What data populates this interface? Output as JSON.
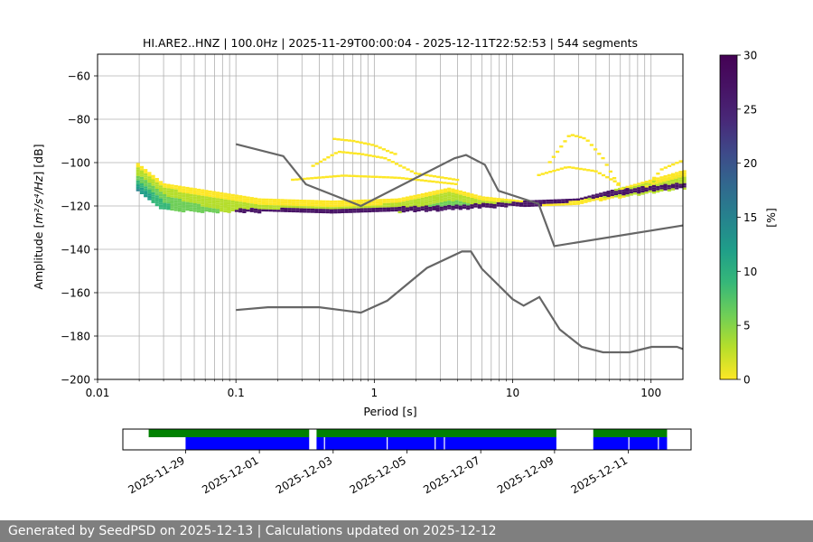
{
  "chart_data": [
    {
      "type": "heatmap",
      "title": "HI.ARE2..HNZ | 100.0Hz | 2025-11-29T00:00:04 - 2025-12-11T22:52:53 | 544 segments",
      "xlabel": "Period [s]",
      "ylabel_prefix": "Amplitude [",
      "ylabel_math": "m²/s⁴/Hz",
      "ylabel_suffix": "] [dB]",
      "xscale": "log",
      "xlim": [
        0.01,
        170
      ],
      "ylim": [
        -200,
        -50
      ],
      "x_ticks": [
        0.01,
        0.1,
        1,
        10,
        100
      ],
      "x_tick_labels": [
        "0.01",
        "0.1",
        "1",
        "10",
        "100"
      ],
      "y_ticks": [
        -200,
        -180,
        -160,
        -140,
        -120,
        -100,
        -80,
        -60
      ],
      "y_tick_labels": [
        "−200",
        "−180",
        "−160",
        "−140",
        "−120",
        "−100",
        "−80",
        "−60"
      ],
      "grid": true,
      "colorbar": {
        "label": "[%]",
        "range": [
          0,
          30
        ],
        "ticks": [
          0,
          5,
          10,
          15,
          20,
          25,
          30
        ],
        "tick_labels": [
          "0",
          "5",
          "10",
          "15",
          "20",
          "25",
          "30"
        ],
        "colormap": "viridis_r"
      },
      "mode_curve": [
        [
          0.019,
          -113
        ],
        [
          0.03,
          -120
        ],
        [
          0.05,
          -122
        ],
        [
          0.1,
          -122.5
        ],
        [
          0.3,
          -122.5
        ],
        [
          0.8,
          -122
        ],
        [
          2,
          -121.5
        ],
        [
          5,
          -120.5
        ],
        [
          10,
          -119.5
        ],
        [
          20,
          -118
        ],
        [
          40,
          -115
        ],
        [
          100,
          -112
        ],
        [
          170,
          -110.5
        ]
      ],
      "percentile_band": [
        [
          0.019,
          -100,
          -113,
          14
        ],
        [
          0.03,
          -110,
          -122,
          8
        ],
        [
          0.06,
          -113,
          -123,
          5
        ],
        [
          0.15,
          -117,
          -123,
          3
        ],
        [
          0.5,
          -118,
          -123,
          2
        ],
        [
          1.5,
          -117,
          -123,
          3
        ],
        [
          3.5,
          -112,
          -122,
          7
        ],
        [
          6,
          -116,
          -121,
          4
        ],
        [
          12,
          -118,
          -120,
          2
        ],
        [
          30,
          -117,
          -119,
          2
        ],
        [
          80,
          -110,
          -115,
          3
        ],
        [
          170,
          -104,
          -112,
          4
        ]
      ],
      "outlier_curves": [
        [
          [
            0.35,
            -102
          ],
          [
            0.55,
            -95
          ],
          [
            0.8,
            -96
          ],
          [
            1.2,
            -98
          ],
          [
            2,
            -105
          ],
          [
            4,
            -108
          ]
        ],
        [
          [
            0.25,
            -108
          ],
          [
            0.6,
            -106
          ],
          [
            1.5,
            -107
          ],
          [
            4,
            -110
          ]
        ],
        [
          [
            0.5,
            -89
          ],
          [
            0.7,
            -90
          ],
          [
            1,
            -92
          ],
          [
            1.4,
            -96
          ]
        ],
        [
          [
            18,
            -101
          ],
          [
            26,
            -87
          ],
          [
            34,
            -89
          ],
          [
            45,
            -98
          ],
          [
            60,
            -112
          ]
        ],
        [
          [
            15,
            -106
          ],
          [
            25,
            -102
          ],
          [
            40,
            -104
          ],
          [
            60,
            -110
          ]
        ],
        [
          [
            90,
            -112
          ],
          [
            120,
            -103
          ],
          [
            170,
            -99
          ]
        ],
        [
          [
            100,
            -110
          ],
          [
            170,
            -106
          ]
        ]
      ],
      "noise_model_high": [
        [
          0.1,
          -91.5
        ],
        [
          0.22,
          -97
        ],
        [
          0.32,
          -110
        ],
        [
          0.8,
          -120
        ],
        [
          3.8,
          -98
        ],
        [
          4.6,
          -96.5
        ],
        [
          6.3,
          -101
        ],
        [
          7.9,
          -113
        ],
        [
          15.4,
          -119
        ],
        [
          20,
          -138.5
        ],
        [
          170,
          -129
        ]
      ],
      "noise_model_low": [
        [
          0.1,
          -168
        ],
        [
          0.17,
          -166.7
        ],
        [
          0.4,
          -166.7
        ],
        [
          0.8,
          -169.2
        ],
        [
          1.24,
          -163.7
        ],
        [
          2.4,
          -148.6
        ],
        [
          4.3,
          -141
        ],
        [
          5,
          -141
        ],
        [
          6,
          -149
        ],
        [
          10,
          -163
        ],
        [
          12,
          -166
        ],
        [
          15.6,
          -162
        ],
        [
          21.9,
          -177
        ],
        [
          31.6,
          -185
        ],
        [
          45,
          -187.5
        ],
        [
          70,
          -187.5
        ],
        [
          101,
          -185
        ],
        [
          154,
          -185
        ],
        [
          170,
          -186
        ]
      ]
    },
    {
      "type": "timeline",
      "x_tick_labels": [
        "2025-11-29",
        "2025-12-01",
        "2025-12-03",
        "2025-12-05",
        "2025-12-07",
        "2025-12-09",
        "2025-12-11"
      ],
      "x_ticks_day": [
        1,
        3,
        5,
        7,
        9,
        11,
        13
      ],
      "xlim_day": [
        -0.7,
        14.7
      ],
      "green_spans_day": [
        [
          0,
          4.35
        ],
        [
          4.55,
          11.05
        ],
        [
          12.05,
          14.05
        ]
      ],
      "blue_spans_day": [
        [
          1.0,
          4.35
        ],
        [
          4.55,
          11.05
        ],
        [
          12.05,
          14.05
        ]
      ],
      "blue_gaps_day": [
        4.75,
        6.45,
        7.75,
        8.0,
        13.0,
        13.8
      ],
      "colors": {
        "green": "#008000",
        "blue": "#0000ff"
      }
    }
  ],
  "footer": {
    "text": "Generated by SeedPSD on 2025-12-13 | Calculations updated on 2025-12-12"
  }
}
